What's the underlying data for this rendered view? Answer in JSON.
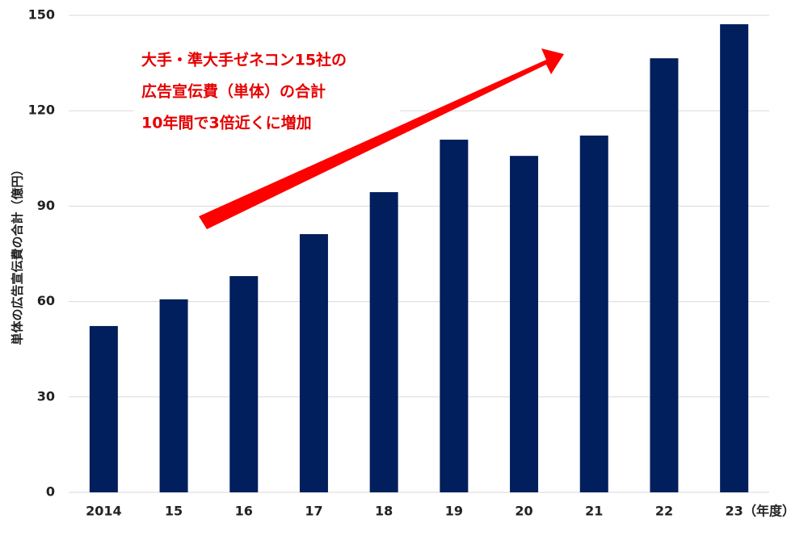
{
  "chart_data": {
    "type": "bar",
    "y_label": "単体の広告宣伝費の合計（億円）",
    "x_label": "（年度）",
    "annotation": [
      "大手・準大手ゼネコン15社の",
      "広告宣伝費（単体）の合計",
      "10年間で3倍近くに増加"
    ],
    "categories": [
      "2014",
      "15",
      "16",
      "17",
      "18",
      "19",
      "20",
      "21",
      "22",
      "23"
    ],
    "values": [
      52.3,
      60.7,
      68.0,
      81.2,
      94.4,
      110.9,
      105.8,
      112.2,
      136.5,
      147.2
    ],
    "color": "#001f5c",
    "ylim": [
      0,
      150
    ],
    "yticks": [
      0,
      30,
      60,
      90,
      120,
      150
    ],
    "grid": true
  }
}
